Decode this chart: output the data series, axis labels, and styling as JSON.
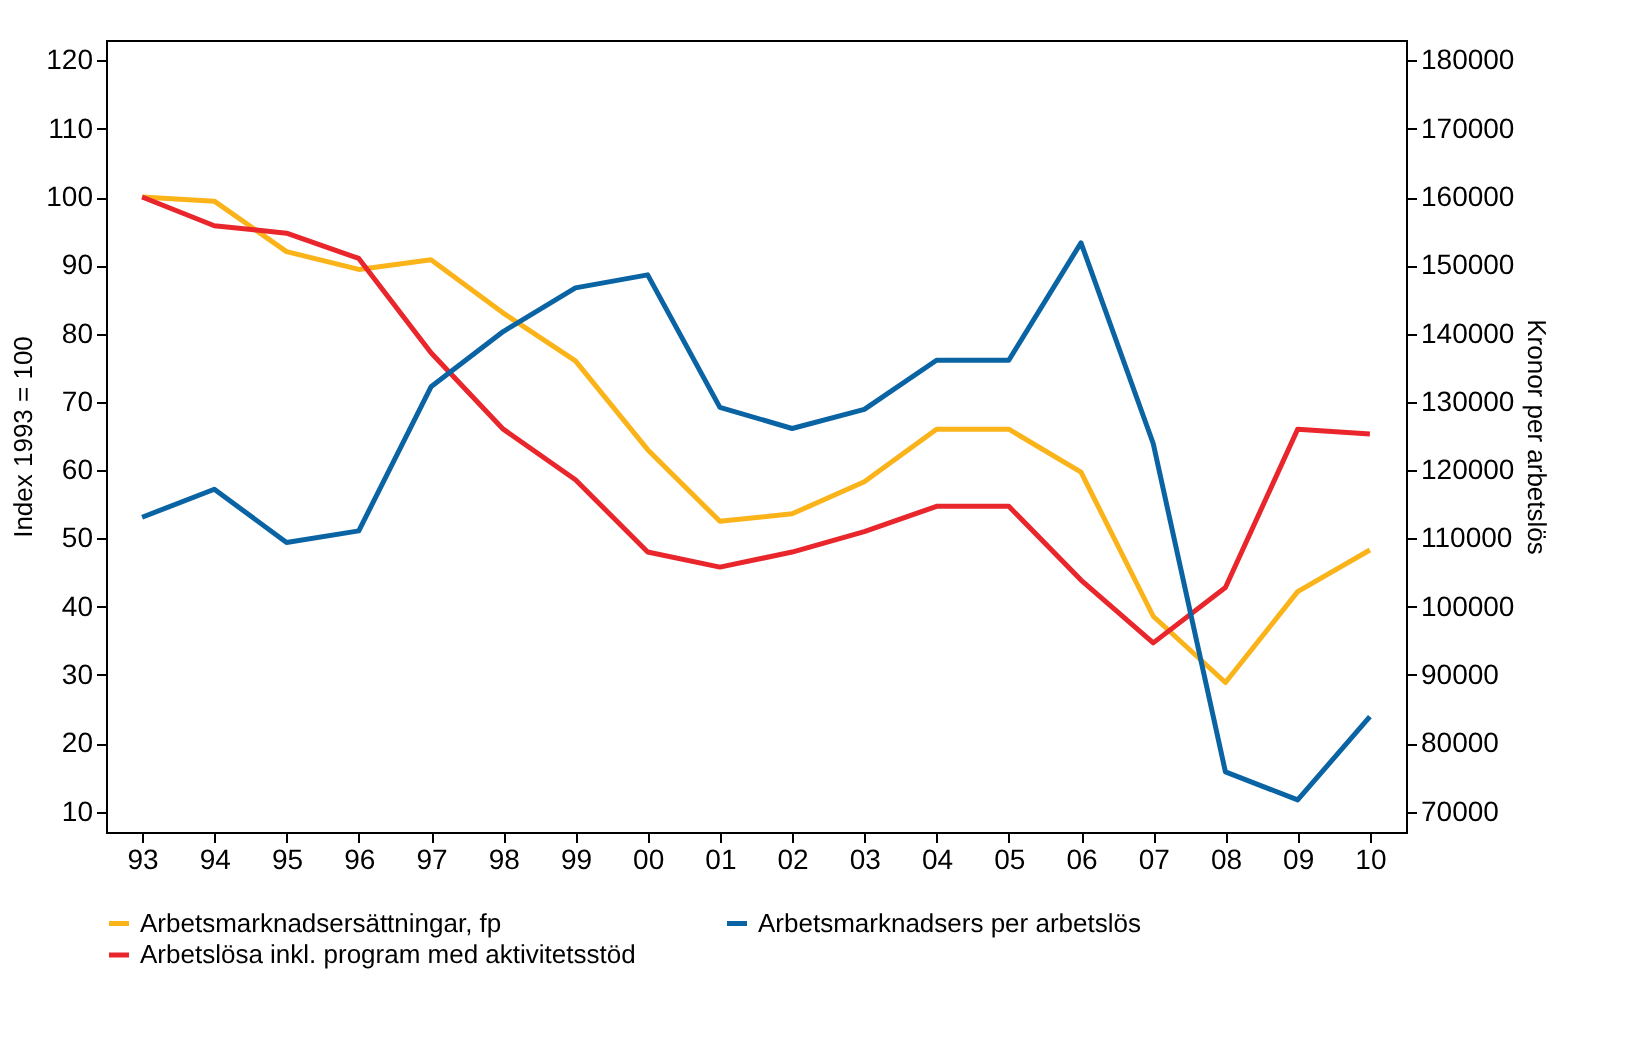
{
  "chart_data": {
    "type": "line",
    "ylabel": "Index 1993 = 100",
    "y2label": "Kronor per arbetslös",
    "categories": [
      "93",
      "94",
      "95",
      "96",
      "97",
      "98",
      "99",
      "00",
      "01",
      "02",
      "03",
      "04",
      "05",
      "06",
      "07",
      "08",
      "09",
      "10"
    ],
    "series": [
      {
        "name": "Arbetsmarknadsersättningar, fp",
        "color": "#fbb31a",
        "values": [
          100,
          99.4,
          92,
          89.4,
          90.8,
          83,
          76,
          63,
          52.5,
          53.6,
          58.3,
          66,
          66,
          59.7,
          38.6,
          28.9,
          42.2,
          48.3
        ]
      },
      {
        "name": "Arbetsmarknadsers per arbetslös",
        "color": "#0a64a4",
        "axis": "y2",
        "values": [
          113100,
          117200,
          109400,
          111100,
          132200,
          140300,
          146700,
          148600,
          129200,
          126100,
          128900,
          136100,
          136100,
          153300,
          123900,
          75800,
          71700,
          83900
        ]
      },
      {
        "name": "Arbetslösa inkl. program med aktivitetsstöd",
        "color": "#e8262b",
        "values": [
          100,
          95.8,
          94.7,
          91,
          77.2,
          66,
          58.6,
          48,
          45.8,
          48,
          51,
          54.7,
          54.7,
          43.9,
          34.7,
          42.8,
          66,
          65.3
        ]
      }
    ],
    "ylim": [
      7,
      123
    ],
    "yticks": [
      10,
      20,
      30,
      40,
      50,
      60,
      70,
      80,
      90,
      100,
      110,
      120
    ],
    "y2lim": [
      67000,
      183000
    ],
    "y2ticks": [
      70000,
      80000,
      90000,
      100000,
      110000,
      120000,
      130000,
      140000,
      150000,
      160000,
      170000,
      180000
    ],
    "grid": false,
    "legend": "bottom",
    "marker": "none",
    "line_style": "solid"
  }
}
